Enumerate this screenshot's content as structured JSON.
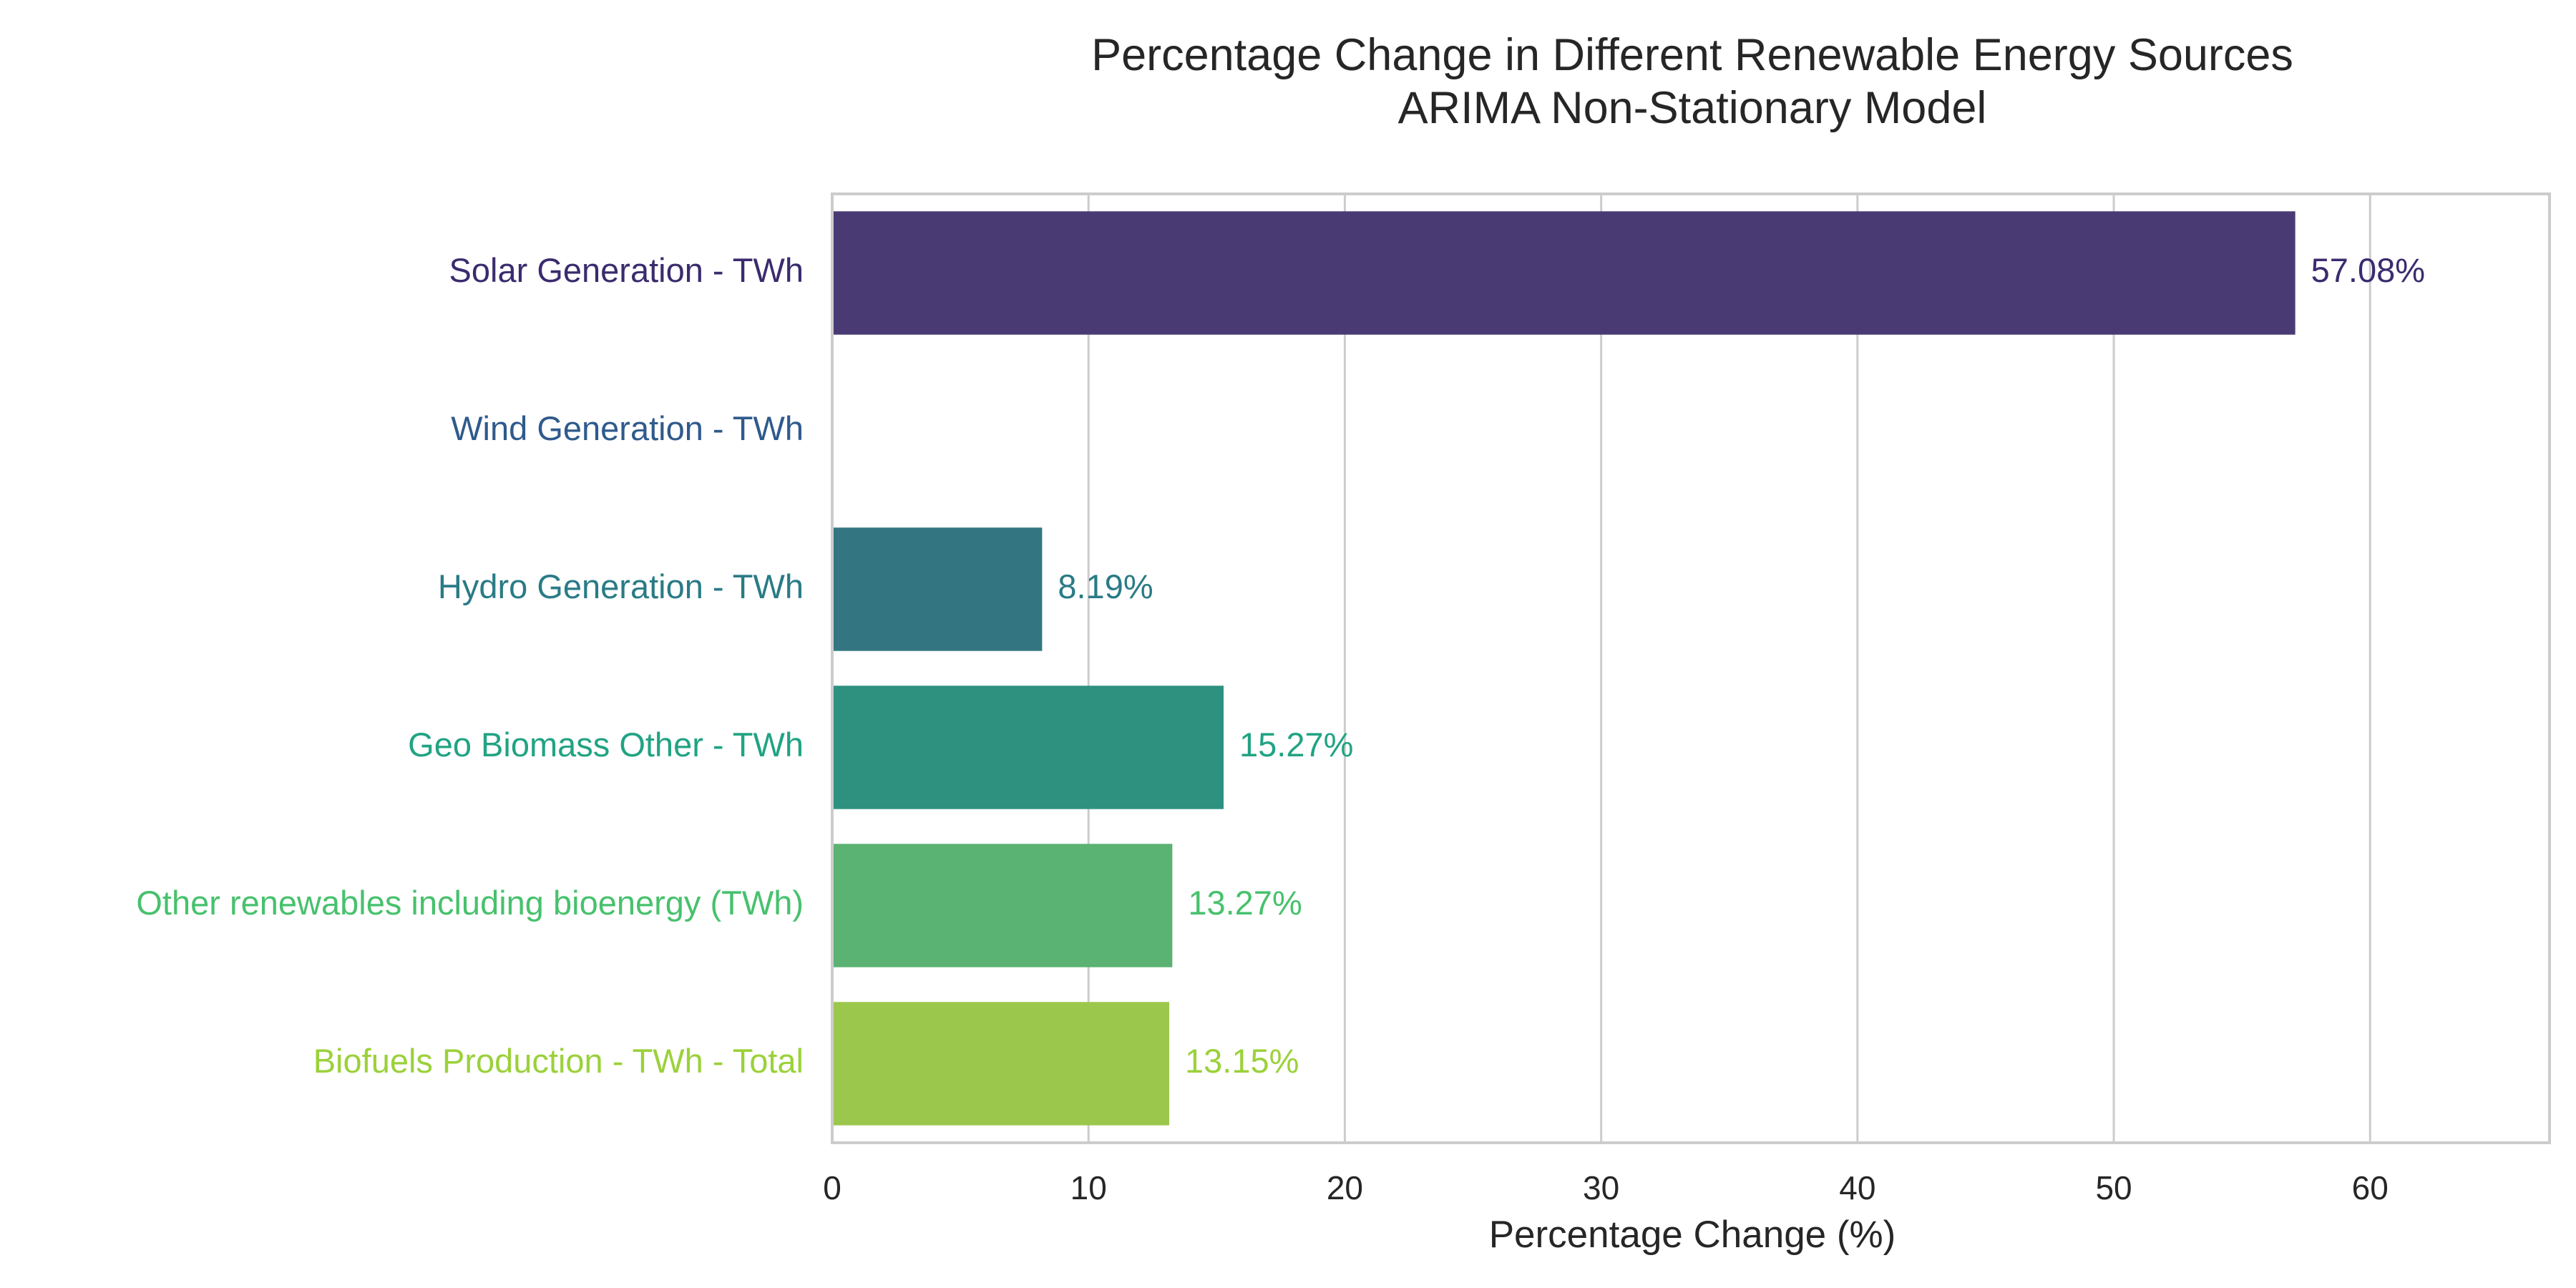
{
  "chart_data": {
    "type": "bar",
    "orientation": "horizontal",
    "title": "Percentage Change in Different Renewable Energy Sources",
    "subtitle": "ARIMA Non-Stationary Model",
    "xlabel": "Percentage Change (%)",
    "ylabel": "",
    "xlim": [
      0,
      67
    ],
    "x_ticks": [
      "0",
      "10",
      "20",
      "30",
      "40",
      "50",
      "60"
    ],
    "grid": "vertical",
    "categories": [
      "Solar Generation - TWh",
      "Wind Generation - TWh",
      "Hydro Generation - TWh",
      "Geo Biomass Other - TWh",
      "Other renewables including bioenergy (TWh)",
      "Biofuels Production - TWh - Total"
    ],
    "values": [
      57.08,
      null,
      8.19,
      15.27,
      13.27,
      13.15
    ],
    "value_labels": [
      "57.08%",
      "",
      "8.19%",
      "15.27%",
      "13.27%",
      "13.15%"
    ],
    "bar_colors": [
      "#4a3a74",
      "#35558a",
      "#337681",
      "#2e9180",
      "#5ab273",
      "#9bc74c"
    ],
    "label_colors": [
      "#3b2b6e",
      "#2f5a8c",
      "#2a7b86",
      "#21a383",
      "#47c16d",
      "#9bd13a"
    ]
  }
}
